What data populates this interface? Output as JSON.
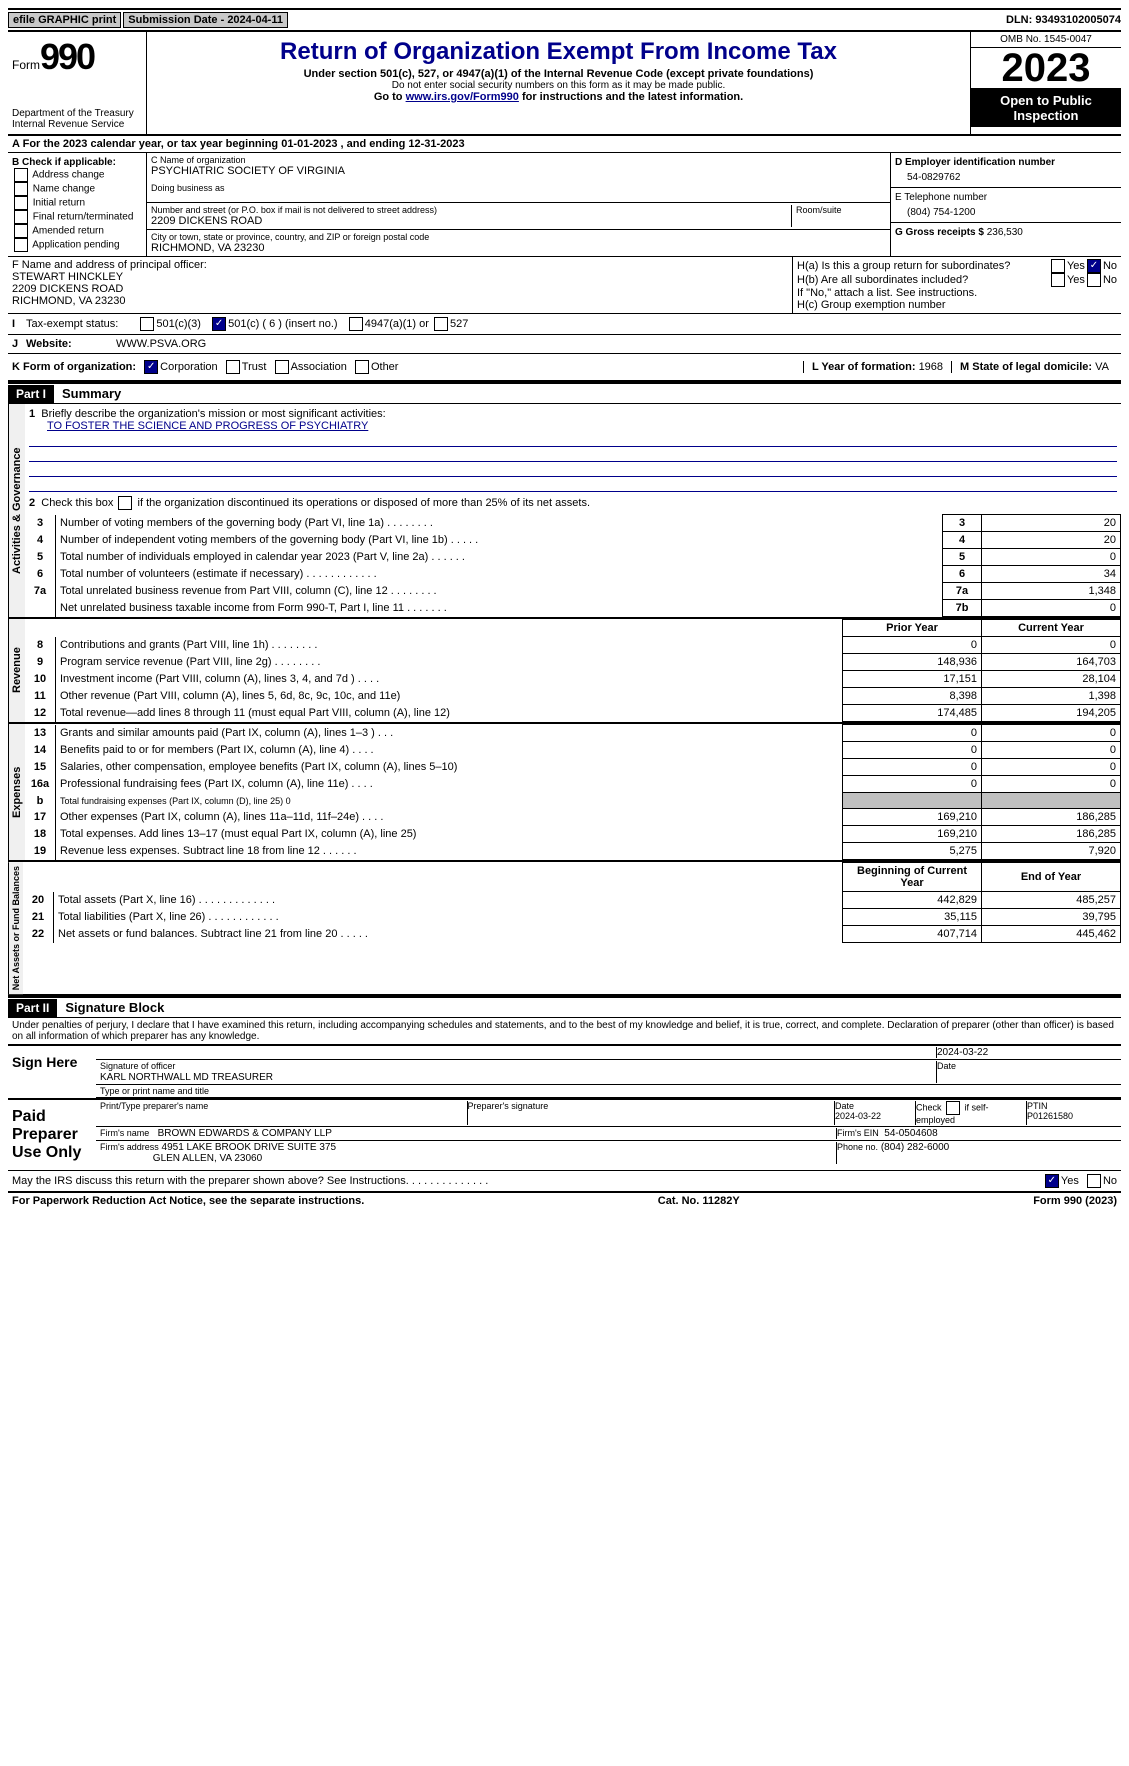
{
  "top": {
    "efile": "efile GRAPHIC print",
    "submission": "Submission Date - 2024-04-11",
    "dln": "DLN: 93493102005074"
  },
  "header": {
    "form_word": "Form",
    "form_num": "990",
    "dept": "Department of the Treasury",
    "irs": "Internal Revenue Service",
    "title": "Return of Organization Exempt From Income Tax",
    "sub1": "Under section 501(c), 527, or 4947(a)(1) of the Internal Revenue Code (except private foundations)",
    "sub2": "Do not enter social security numbers on this form as it may be made public.",
    "sub3_pre": "Go to ",
    "sub3_link": "www.irs.gov/Form990",
    "sub3_post": " for instructions and the latest information.",
    "omb": "OMB No. 1545-0047",
    "year": "2023",
    "otp": "Open to Public Inspection"
  },
  "a_line": "For the 2023 calendar year, or tax year beginning 01-01-2023    , and ending 12-31-2023",
  "b": {
    "header": "B Check if applicable:",
    "opts": [
      "Address change",
      "Name change",
      "Initial return",
      "Final return/terminated",
      "Amended return",
      "Application pending"
    ]
  },
  "c": {
    "name_lbl": "C Name of organization",
    "name": "PSYCHIATRIC SOCIETY OF VIRGINIA",
    "dba_lbl": "Doing business as",
    "dba": "",
    "addr_lbl": "Number and street (or P.O. box if mail is not delivered to street address)",
    "addr": "2209 DICKENS ROAD",
    "room_lbl": "Room/suite",
    "city_lbl": "City or town, state or province, country, and ZIP or foreign postal code",
    "city": "RICHMOND, VA  23230"
  },
  "d": {
    "lbl": "D Employer identification number",
    "val": "54-0829762"
  },
  "e": {
    "lbl": "E Telephone number",
    "val": "(804) 754-1200"
  },
  "g": {
    "lbl": "G Gross receipts $",
    "val": "236,530"
  },
  "f": {
    "lbl": "F  Name and address of principal officer:",
    "name": "STEWART HINCKLEY",
    "addr1": "2209 DICKENS ROAD",
    "addr2": "RICHMOND, VA  23230"
  },
  "h": {
    "a_lbl": "H(a)  Is this a group return for subordinates?",
    "b_lbl": "H(b)  Are all subordinates included?",
    "b_note": "If \"No,\" attach a list. See instructions.",
    "c_lbl": "H(c)  Group exemption number"
  },
  "i": {
    "lbl": "Tax-exempt status:",
    "opts": [
      "501(c)(3)",
      "501(c) ( 6 ) (insert no.)",
      "4947(a)(1) or",
      "527"
    ]
  },
  "j": {
    "lbl": "Website:",
    "val": "WWW.PSVA.ORG"
  },
  "k": {
    "lbl": "K Form of organization:",
    "opts": [
      "Corporation",
      "Trust",
      "Association",
      "Other"
    ]
  },
  "l": {
    "lbl": "L Year of formation:",
    "val": "1968"
  },
  "m": {
    "lbl": "M State of legal domicile:",
    "val": "VA"
  },
  "part1": {
    "hdr": "Part I",
    "title": "Summary",
    "line1_lbl": "Briefly describe the organization's mission or most significant activities:",
    "mission": "TO FOSTER THE SCIENCE AND PROGRESS OF PSYCHIATRY",
    "line2": "Check this box          if the organization discontinued its operations or disposed of more than 25% of its net assets.",
    "vert1": "Activities & Governance",
    "vert2": "Revenue",
    "vert3": "Expenses",
    "vert4": "Net Assets or Fund Balances",
    "col_prior": "Prior Year",
    "col_curr": "Current Year",
    "col_beg": "Beginning of Current Year",
    "col_end": "End of Year",
    "rows_gov": [
      {
        "n": "3",
        "d": "Number of voting members of the governing body (Part VI, line 1a)   .    .    .    .    .    .    .    .",
        "box": "3",
        "v": "20"
      },
      {
        "n": "4",
        "d": "Number of independent voting members of the governing body (Part VI, line 1b)    .    .    .    .    .",
        "box": "4",
        "v": "20"
      },
      {
        "n": "5",
        "d": "Total number of individuals employed in calendar year 2023 (Part V, line 2a)    .    .    .    .    .    .",
        "box": "5",
        "v": "0"
      },
      {
        "n": "6",
        "d": "Total number of volunteers (estimate if necessary)    .    .    .    .    .    .    .    .    .    .    .    .",
        "box": "6",
        "v": "34"
      },
      {
        "n": "7a",
        "d": "Total unrelated business revenue from Part VIII, column (C), line 12    .    .    .    .    .    .    .    .",
        "box": "7a",
        "v": "1,348"
      },
      {
        "n": "",
        "d": "Net unrelated business taxable income from Form 990-T, Part I, line 11    .    .    .    .    .    .    .",
        "box": "7b",
        "v": "0"
      }
    ],
    "rows_rev": [
      {
        "n": "8",
        "d": "Contributions and grants (Part VIII, line 1h)    .    .    .    .    .    .    .    .",
        "p": "0",
        "c": "0"
      },
      {
        "n": "9",
        "d": "Program service revenue (Part VIII, line 2g)    .    .    .    .    .    .    .    .",
        "p": "148,936",
        "c": "164,703"
      },
      {
        "n": "10",
        "d": "Investment income (Part VIII, column (A), lines 3, 4, and 7d )    .    .    .    .",
        "p": "17,151",
        "c": "28,104"
      },
      {
        "n": "11",
        "d": "Other revenue (Part VIII, column (A), lines 5, 6d, 8c, 9c, 10c, and 11e)",
        "p": "8,398",
        "c": "1,398"
      },
      {
        "n": "12",
        "d": "Total revenue—add lines 8 through 11 (must equal Part VIII, column (A), line 12)",
        "p": "174,485",
        "c": "194,205"
      }
    ],
    "rows_exp": [
      {
        "n": "13",
        "d": "Grants and similar amounts paid (Part IX, column (A), lines 1–3 )    .    .    .",
        "p": "0",
        "c": "0"
      },
      {
        "n": "14",
        "d": "Benefits paid to or for members (Part IX, column (A), line 4)    .    .    .    .",
        "p": "0",
        "c": "0"
      },
      {
        "n": "15",
        "d": "Salaries, other compensation, employee benefits (Part IX, column (A), lines 5–10)",
        "p": "0",
        "c": "0"
      },
      {
        "n": "16a",
        "d": "Professional fundraising fees (Part IX, column (A), line 11e)    .    .    .    .",
        "p": "0",
        "c": "0"
      },
      {
        "n": "b",
        "d": "Total fundraising expenses (Part IX, column (D), line 25) 0",
        "p": "",
        "c": "",
        "shade": true,
        "small": true
      },
      {
        "n": "17",
        "d": "Other expenses (Part IX, column (A), lines 11a–11d, 11f–24e)    .    .    .    .",
        "p": "169,210",
        "c": "186,285"
      },
      {
        "n": "18",
        "d": "Total expenses. Add lines 13–17 (must equal Part IX, column (A), line 25)",
        "p": "169,210",
        "c": "186,285"
      },
      {
        "n": "19",
        "d": "Revenue less expenses. Subtract line 18 from line 12    .    .    .    .    .    .",
        "p": "5,275",
        "c": "7,920"
      }
    ],
    "rows_net": [
      {
        "n": "20",
        "d": "Total assets (Part X, line 16)    .    .    .    .    .    .    .    .    .    .    .    .    .",
        "p": "442,829",
        "c": "485,257"
      },
      {
        "n": "21",
        "d": "Total liabilities (Part X, line 26)    .    .    .    .    .    .    .    .    .    .    .    .",
        "p": "35,115",
        "c": "39,795"
      },
      {
        "n": "22",
        "d": "Net assets or fund balances. Subtract line 21 from line 20    .    .    .    .    .",
        "p": "407,714",
        "c": "445,462"
      }
    ]
  },
  "part2": {
    "hdr": "Part II",
    "title": "Signature Block",
    "decl": "Under penalties of perjury, I declare that I have examined this return, including accompanying schedules and statements, and to the best of my knowledge and belief, it is true, correct, and complete. Declaration of preparer (other than officer) is based on all information of which preparer has any knowledge.",
    "sign_here": "Sign Here",
    "sig_officer_lbl": "Signature of officer",
    "sig_officer_val": "KARL NORTHWALL MD  TREASURER",
    "sig_date_lbl": "Date",
    "sig_date_val": "2024-03-22",
    "type_name_lbl": "Type or print name and title",
    "paid": "Paid Preparer Use Only",
    "prep_name_lbl": "Print/Type preparer's name",
    "prep_sig_lbl": "Preparer's signature",
    "prep_date_lbl": "Date",
    "prep_date_val": "2024-03-22",
    "prep_check_lbl": "Check         if self-employed",
    "ptin_lbl": "PTIN",
    "ptin_val": "P01261580",
    "firm_name_lbl": "Firm's name",
    "firm_name": "BROWN EDWARDS & COMPANY LLP",
    "firm_ein_lbl": "Firm's EIN",
    "firm_ein": "54-0504608",
    "firm_addr_lbl": "Firm's address",
    "firm_addr1": "4951 LAKE BROOK DRIVE SUITE 375",
    "firm_addr2": "GLEN ALLEN, VA  23060",
    "phone_lbl": "Phone no.",
    "phone": "(804) 282-6000",
    "discuss": "May the IRS discuss this return with the preparer shown above? See Instructions.    .    .    .    .    .    .    .    .    .    .    .    .    ."
  },
  "footer": {
    "left": "For Paperwork Reduction Act Notice, see the separate instructions.",
    "mid": "Cat. No. 11282Y",
    "right": "Form 990 (2023)"
  }
}
